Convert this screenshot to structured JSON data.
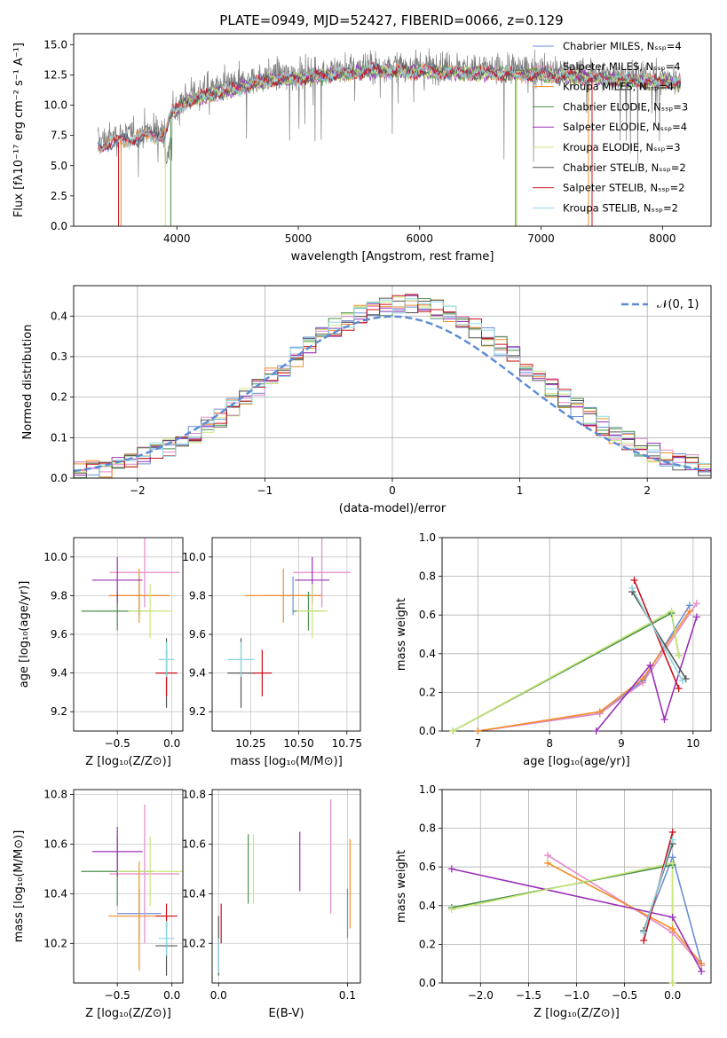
{
  "title": "PLATE=0949, MJD=52427, FIBERID=0066, z=0.129",
  "colors": {
    "Chabrier MILES": "#6a8fd8",
    "Salpeter MILES": "#e58ac8",
    "Kroupa MILES": "#f28e2b",
    "Chabrier ELODIE": "#4a8f4a",
    "Salpeter ELODIE": "#9b30b8",
    "Kroupa ELODIE": "#c9e67a",
    "Chabrier STELIB": "#555555",
    "Salpeter STELIB": "#c8101c",
    "Kroupa STELIB": "#8fd7e0"
  },
  "chart_data": [
    {
      "id": "spectrum",
      "type": "line",
      "title": "PLATE=0949, MJD=52427, FIBERID=0066, z=0.129",
      "xlabel": "wavelength [Angstrom, rest frame]",
      "ylabel": "Flux [fλ10⁻¹⁷ erg cm⁻² s⁻¹ A⁻¹]",
      "xlim": [
        3150,
        8400
      ],
      "ylim": [
        0,
        15.9
      ],
      "xticks": [
        4000,
        5000,
        6000,
        7000,
        8000
      ],
      "yticks": [
        0.0,
        2.5,
        5.0,
        7.5,
        10.0,
        12.5,
        15.0
      ],
      "legend_position": "right",
      "legend": [
        "Chabrier MILES, Nₛₛₚ=4",
        "Salpeter MILES, Nₛₛₚ=4",
        "Kroupa MILES, Nₛₛₚ=4",
        "Chabrier ELODIE, Nₛₛₚ=3",
        "Salpeter ELODIE, Nₛₛₚ=4",
        "Kroupa ELODIE, Nₛₛₚ=3",
        "Chabrier STELIB, Nₛₛₚ=2",
        "Salpeter STELIB, Nₛₛₚ=2",
        "Kroupa STELIB, Nₛₛₚ=2"
      ],
      "continuum_x": [
        3350,
        3600,
        3900,
        3950,
        4100,
        4300,
        4500,
        4800,
        5000,
        5300,
        5600,
        6000,
        6300,
        6600,
        7000,
        7300,
        7600,
        8150
      ],
      "continuum_y": [
        7.0,
        7.6,
        8.0,
        9.6,
        10.8,
        11.3,
        11.8,
        12.5,
        12.6,
        12.9,
        13.2,
        13.2,
        13.1,
        13.0,
        12.9,
        12.7,
        12.5,
        12.2
      ]
    },
    {
      "id": "residuals",
      "type": "histogram",
      "xlabel": "(data-model)/error",
      "ylabel": "Normed distribution",
      "xlim": [
        -2.5,
        2.5
      ],
      "ylim": [
        0,
        0.475
      ],
      "xticks": [
        -2,
        -1,
        0,
        1,
        2
      ],
      "yticks": [
        0.0,
        0.1,
        0.2,
        0.3,
        0.4
      ],
      "legend": [
        "𝒩(0, 1)"
      ],
      "legend_position": "top-right",
      "bin_width": 0.1,
      "grid": true
    },
    {
      "id": "age_vs_Z",
      "type": "errorbar",
      "xlabel": "Z [log₁₀(Z/Z⊙)]",
      "ylabel": "age  [log₁₀(age/yr)]",
      "xlim": [
        -0.9,
        0.1
      ],
      "ylim": [
        9.1,
        10.1
      ],
      "xticks": [
        -0.5,
        0.0
      ],
      "yticks": [
        9.2,
        9.4,
        9.6,
        9.8,
        10.0
      ],
      "points": [
        {
          "model": "Chabrier MILES",
          "x": -0.3,
          "y": 9.8,
          "xerr": 0.27,
          "yerr": 0.1
        },
        {
          "model": "Salpeter MILES",
          "x": -0.25,
          "y": 9.92,
          "xerr": 0.32,
          "yerr": 0.18
        },
        {
          "model": "Kroupa MILES",
          "x": -0.3,
          "y": 9.8,
          "xerr": 0.28,
          "yerr": 0.14
        },
        {
          "model": "Chabrier ELODIE",
          "x": -0.5,
          "y": 9.72,
          "xerr": 0.33,
          "yerr": 0.1
        },
        {
          "model": "Salpeter ELODIE",
          "x": -0.5,
          "y": 9.88,
          "xerr": 0.23,
          "yerr": 0.12
        },
        {
          "model": "Kroupa ELODIE",
          "x": -0.2,
          "y": 9.72,
          "xerr": 0.2,
          "yerr": 0.14
        },
        {
          "model": "Chabrier STELIB",
          "x": -0.05,
          "y": 9.4,
          "xerr": 0.02,
          "yerr": 0.18
        },
        {
          "model": "Salpeter STELIB",
          "x": -0.05,
          "y": 9.4,
          "xerr": 0.1,
          "yerr": 0.12
        },
        {
          "model": "Kroupa STELIB",
          "x": -0.05,
          "y": 9.47,
          "xerr": 0.07,
          "yerr": 0.09
        }
      ]
    },
    {
      "id": "age_vs_mass",
      "type": "errorbar",
      "xlabel": "mass [log₁₀(M/M⊙)]",
      "xlim": [
        10.05,
        10.82
      ],
      "ylim": [
        9.1,
        10.1
      ],
      "xticks": [
        10.25,
        10.5,
        10.75
      ],
      "yticks": [
        9.2,
        9.4,
        9.6,
        9.8,
        10.0
      ],
      "points": [
        {
          "model": "Chabrier MILES",
          "x": 10.47,
          "y": 9.8,
          "xerr": 0.15,
          "yerr": 0.1
        },
        {
          "model": "Salpeter MILES",
          "x": 10.62,
          "y": 9.92,
          "xerr": 0.15,
          "yerr": 0.18
        },
        {
          "model": "Kroupa MILES",
          "x": 10.42,
          "y": 9.8,
          "xerr": 0.2,
          "yerr": 0.14
        },
        {
          "model": "Chabrier ELODIE",
          "x": 10.55,
          "y": 9.72,
          "xerr": 0.08,
          "yerr": 0.1
        },
        {
          "model": "Salpeter ELODIE",
          "x": 10.57,
          "y": 9.88,
          "xerr": 0.09,
          "yerr": 0.12
        },
        {
          "model": "Kroupa ELODIE",
          "x": 10.57,
          "y": 9.72,
          "xerr": 0.08,
          "yerr": 0.14
        },
        {
          "model": "Chabrier STELIB",
          "x": 10.2,
          "y": 9.4,
          "xerr": 0.07,
          "yerr": 0.18
        },
        {
          "model": "Salpeter STELIB",
          "x": 10.31,
          "y": 9.4,
          "xerr": 0.05,
          "yerr": 0.12
        },
        {
          "model": "Kroupa STELIB",
          "x": 10.2,
          "y": 9.47,
          "xerr": 0.07,
          "yerr": 0.09
        }
      ]
    },
    {
      "id": "mass_weight_vs_age",
      "type": "line",
      "xlabel": "age  [log₁₀(age/yr)]",
      "ylabel": "mass weight",
      "xlim": [
        6.5,
        10.25
      ],
      "ylim": [
        0.0,
        1.0
      ],
      "xticks": [
        7,
        8,
        9,
        10
      ],
      "yticks": [
        0.0,
        0.2,
        0.4,
        0.6,
        0.8,
        1.0
      ],
      "grid": true,
      "series": [
        {
          "model": "Chabrier MILES",
          "x": [
            7.0,
            8.7,
            9.3,
            9.95
          ],
          "y": [
            0.0,
            0.09,
            0.26,
            0.65
          ]
        },
        {
          "model": "Salpeter MILES",
          "x": [
            7.0,
            8.7,
            9.3,
            10.05
          ],
          "y": [
            0.0,
            0.09,
            0.25,
            0.66
          ]
        },
        {
          "model": "Kroupa MILES",
          "x": [
            7.0,
            8.7,
            9.3,
            9.95
          ],
          "y": [
            0.0,
            0.1,
            0.27,
            0.62
          ]
        },
        {
          "model": "Chabrier ELODIE",
          "x": [
            6.65,
            9.7,
            9.8
          ],
          "y": [
            0.0,
            0.61,
            0.39
          ]
        },
        {
          "model": "Salpeter ELODIE",
          "x": [
            8.65,
            9.4,
            9.6,
            10.05
          ],
          "y": [
            0.0,
            0.34,
            0.06,
            0.59
          ]
        },
        {
          "model": "Kroupa ELODIE",
          "x": [
            6.65,
            9.7,
            9.8
          ],
          "y": [
            0.0,
            0.62,
            0.39
          ]
        },
        {
          "model": "Chabrier STELIB",
          "x": [
            9.15,
            9.9
          ],
          "y": [
            0.72,
            0.27
          ]
        },
        {
          "model": "Salpeter STELIB",
          "x": [
            9.18,
            9.8
          ],
          "y": [
            0.78,
            0.22
          ]
        },
        {
          "model": "Kroupa STELIB",
          "x": [
            9.15,
            9.85
          ],
          "y": [
            0.74,
            0.26
          ]
        }
      ]
    },
    {
      "id": "mass_vs_Z",
      "type": "errorbar",
      "xlabel": "Z [log₁₀(Z/Z⊙)]",
      "ylabel": "mass [log₁₀(M/M⊙)]",
      "xlim": [
        -0.9,
        0.1
      ],
      "ylim": [
        10.04,
        10.82
      ],
      "xticks": [
        -0.5,
        0.0
      ],
      "yticks": [
        10.2,
        10.4,
        10.6,
        10.8
      ],
      "points": [
        {
          "model": "Chabrier MILES",
          "x": -0.3,
          "y": 10.32,
          "xerr": 0.2,
          "yerr": 0.1
        },
        {
          "model": "Salpeter MILES",
          "x": -0.25,
          "y": 10.48,
          "xerr": 0.32,
          "yerr": 0.28
        },
        {
          "model": "Kroupa MILES",
          "x": -0.3,
          "y": 10.31,
          "xerr": 0.28,
          "yerr": 0.22
        },
        {
          "model": "Chabrier ELODIE",
          "x": -0.5,
          "y": 10.49,
          "xerr": 0.33,
          "yerr": 0.14
        },
        {
          "model": "Salpeter ELODIE",
          "x": -0.5,
          "y": 10.57,
          "xerr": 0.23,
          "yerr": 0.1
        },
        {
          "model": "Kroupa ELODIE",
          "x": -0.2,
          "y": 10.49,
          "xerr": 0.3,
          "yerr": 0.14
        },
        {
          "model": "Chabrier STELIB",
          "x": -0.05,
          "y": 10.19,
          "xerr": 0.1,
          "yerr": 0.12
        },
        {
          "model": "Salpeter STELIB",
          "x": -0.05,
          "y": 10.31,
          "xerr": 0.1,
          "yerr": 0.05
        },
        {
          "model": "Kroupa STELIB",
          "x": -0.05,
          "y": 10.22,
          "xerr": 0.07,
          "yerr": 0.07
        }
      ]
    },
    {
      "id": "mass_vs_EBV",
      "type": "errorbar",
      "xlabel": "E(B-V)",
      "xlim": [
        -0.005,
        0.11
      ],
      "ylim": [
        10.04,
        10.82
      ],
      "xticks": [
        0.0,
        0.1
      ],
      "yticks": [
        10.2,
        10.4,
        10.6,
        10.8
      ],
      "points": [
        {
          "model": "Chabrier MILES",
          "x": 0.1,
          "y": 10.32,
          "yerr": 0.1
        },
        {
          "model": "Salpeter MILES",
          "x": 0.087,
          "y": 10.55,
          "yerr": 0.23
        },
        {
          "model": "Kroupa MILES",
          "x": 0.102,
          "y": 10.44,
          "yerr": 0.18
        },
        {
          "model": "Chabrier ELODIE",
          "x": 0.023,
          "y": 10.5,
          "yerr": 0.14
        },
        {
          "model": "Salpeter ELODIE",
          "x": 0.063,
          "y": 10.53,
          "yerr": 0.12
        },
        {
          "model": "Kroupa ELODIE",
          "x": 0.027,
          "y": 10.5,
          "yerr": 0.14
        },
        {
          "model": "Chabrier STELIB",
          "x": 0.0,
          "y": 10.19,
          "yerr": 0.12
        },
        {
          "model": "Salpeter STELIB",
          "x": 0.002,
          "y": 10.28,
          "yerr": 0.08
        },
        {
          "model": "Kroupa STELIB",
          "x": 0.0,
          "y": 10.15,
          "yerr": 0.07
        }
      ]
    },
    {
      "id": "mass_weight_vs_Z",
      "type": "line",
      "xlabel": "Z [log₁₀(Z/Z⊙)]",
      "ylabel": "mass weight",
      "xlim": [
        -2.4,
        0.4
      ],
      "ylim": [
        0.0,
        1.0
      ],
      "xticks": [
        -2.0,
        -1.5,
        -1.0,
        -0.5,
        0.0
      ],
      "yticks": [
        0.0,
        0.2,
        0.4,
        0.6,
        0.8,
        1.0
      ],
      "grid": true,
      "series": [
        {
          "model": "Chabrier MILES",
          "x": [
            -0.3,
            0.0,
            0.3
          ],
          "y": [
            0.27,
            0.65,
            0.1
          ]
        },
        {
          "model": "Salpeter MILES",
          "x": [
            -1.3,
            0.0,
            0.3
          ],
          "y": [
            0.66,
            0.26,
            0.09
          ]
        },
        {
          "model": "Kroupa MILES",
          "x": [
            -1.3,
            0.0,
            0.3
          ],
          "y": [
            0.62,
            0.28,
            0.1
          ]
        },
        {
          "model": "Chabrier ELODIE",
          "x": [
            -2.3,
            0.0,
            0.0
          ],
          "y": [
            0.39,
            0.61,
            0.0
          ]
        },
        {
          "model": "Salpeter ELODIE",
          "x": [
            -2.3,
            0.0,
            0.3
          ],
          "y": [
            0.59,
            0.34,
            0.06
          ]
        },
        {
          "model": "Kroupa ELODIE",
          "x": [
            -2.3,
            0.0,
            0.0
          ],
          "y": [
            0.38,
            0.62,
            0.0
          ]
        },
        {
          "model": "Chabrier STELIB",
          "x": [
            -0.3,
            0.0
          ],
          "y": [
            0.27,
            0.72
          ]
        },
        {
          "model": "Salpeter STELIB",
          "x": [
            -0.3,
            0.0
          ],
          "y": [
            0.22,
            0.78
          ]
        },
        {
          "model": "Kroupa STELIB",
          "x": [
            -0.3,
            0.0
          ],
          "y": [
            0.26,
            0.74
          ]
        }
      ]
    }
  ]
}
